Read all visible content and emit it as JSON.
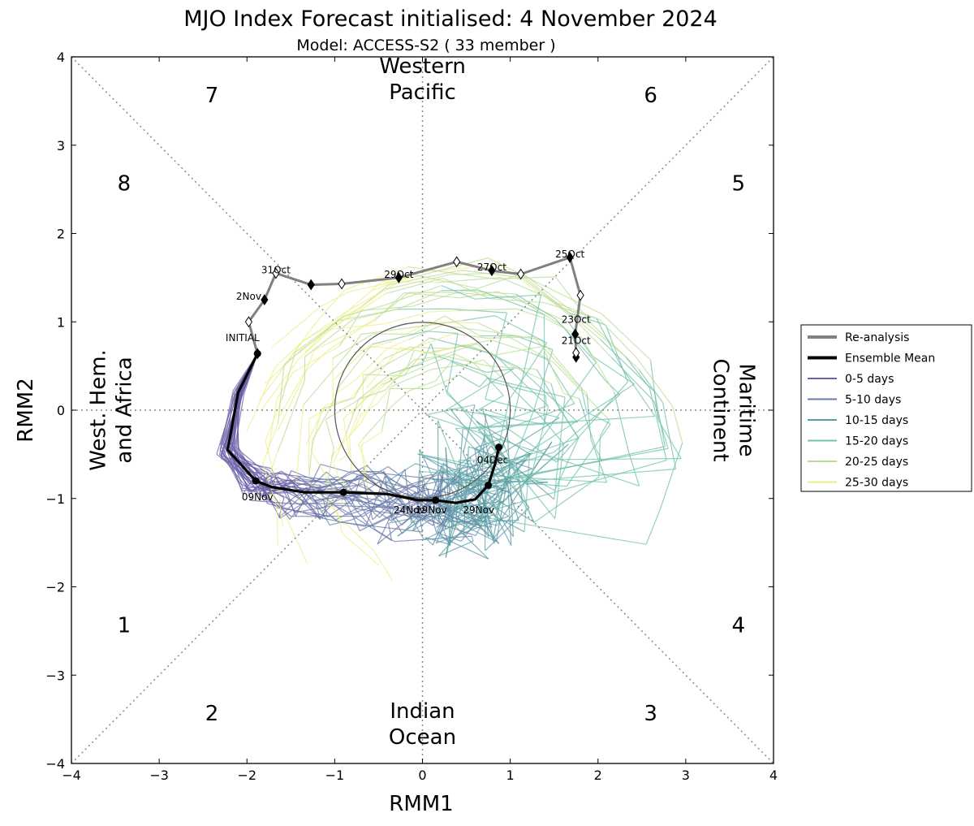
{
  "chart_data": {
    "type": "line",
    "title": "MJO Index Forecast initialised:  4  November 2024",
    "subtitle": "Model: ACCESS-S2 ( 33 member )",
    "xlabel": "RMM1",
    "ylabel": "RMM2",
    "xlim": [
      -4,
      4
    ],
    "ylim": [
      -4,
      4
    ],
    "x_ticks": [
      -4,
      -3,
      -2,
      -1,
      0,
      1,
      2,
      3,
      4
    ],
    "y_ticks": [
      -4,
      -3,
      -2,
      -1,
      0,
      1,
      2,
      3,
      4
    ],
    "x_tick_labels": [
      "−4",
      "−3",
      "−2",
      "−1",
      "0",
      "1",
      "2",
      "3",
      "4"
    ],
    "y_tick_labels": [
      "−4",
      "−3",
      "−2",
      "−1",
      "0",
      "1",
      "2",
      "3",
      "4"
    ],
    "unit_circle_radius": 1,
    "phases": [
      {
        "label": "1",
        "x": -3.4,
        "y": -2.43
      },
      {
        "label": "2",
        "x": -2.4,
        "y": -3.43
      },
      {
        "label": "3",
        "x": 2.6,
        "y": -3.43
      },
      {
        "label": "4",
        "x": 3.6,
        "y": -2.43
      },
      {
        "label": "5",
        "x": 3.6,
        "y": 2.57
      },
      {
        "label": "6",
        "x": 2.6,
        "y": 3.57
      },
      {
        "label": "7",
        "x": -2.4,
        "y": 3.57
      },
      {
        "label": "8",
        "x": -3.4,
        "y": 2.57
      }
    ],
    "regions": [
      {
        "lines": [
          "Western",
          "Pacific"
        ],
        "x": 0,
        "y": 3.75,
        "rotate": 0
      },
      {
        "lines": [
          "Indian",
          "Ocean"
        ],
        "x": 0,
        "y": -3.55,
        "rotate": 0
      },
      {
        "lines": [
          "West. Hem.",
          "and Africa"
        ],
        "x": -3.55,
        "y": 0,
        "rotate": -90
      },
      {
        "lines": [
          "Maritime",
          "Continent"
        ],
        "x": 3.55,
        "y": 0,
        "rotate": 90
      }
    ],
    "series": [
      {
        "name": "Re-analysis",
        "color": "#808080",
        "points": [
          [
            1.75,
            0.6
          ],
          [
            1.75,
            0.65
          ],
          [
            1.74,
            0.86
          ],
          [
            1.8,
            1.3
          ],
          [
            1.68,
            1.73
          ],
          [
            1.12,
            1.54
          ],
          [
            0.79,
            1.58
          ],
          [
            0.39,
            1.68
          ],
          [
            -0.27,
            1.5
          ],
          [
            -0.92,
            1.43
          ],
          [
            -1.27,
            1.42
          ],
          [
            -1.67,
            1.55
          ],
          [
            -1.8,
            1.25
          ],
          [
            -1.98,
            1.0
          ],
          [
            -1.88,
            0.64
          ]
        ]
      },
      {
        "name": "Ensemble Mean",
        "color": "#000000",
        "points": [
          [
            -1.88,
            0.64
          ],
          [
            -2.1,
            0.2
          ],
          [
            -2.22,
            -0.45
          ],
          [
            -1.9,
            -0.8
          ],
          [
            -1.72,
            -0.87
          ],
          [
            -1.35,
            -0.93
          ],
          [
            -0.9,
            -0.93
          ],
          [
            -0.4,
            -0.95
          ],
          [
            -0.05,
            -1.02
          ],
          [
            0.15,
            -1.02
          ],
          [
            0.38,
            -1.05
          ],
          [
            0.6,
            -1.01
          ],
          [
            0.75,
            -0.85
          ],
          [
            0.83,
            -0.6
          ],
          [
            0.87,
            -0.42
          ]
        ]
      }
    ],
    "date_labels": [
      {
        "text": "25Oct",
        "x": 1.68,
        "y": 1.73
      },
      {
        "text": "27Oct",
        "x": 0.79,
        "y": 1.58
      },
      {
        "text": "29Oct",
        "x": -0.27,
        "y": 1.5
      },
      {
        "text": "31Oct",
        "x": -1.67,
        "y": 1.55
      },
      {
        "text": "2Nov",
        "x": -1.98,
        "y": 1.25
      },
      {
        "text": "23Oct",
        "x": 1.75,
        "y": 0.99
      },
      {
        "text": "21Oct",
        "x": 1.75,
        "y": 0.75
      },
      {
        "text": "INITIAL",
        "x": -2.05,
        "y": 0.78
      },
      {
        "text": "09Nov",
        "x": -1.88,
        "y": -1.02
      },
      {
        "text": "24Nov",
        "x": -0.15,
        "y": -1.17
      },
      {
        "text": "19Nov",
        "x": 0.1,
        "y": -1.17
      },
      {
        "text": "29Nov",
        "x": 0.64,
        "y": -1.17
      },
      {
        "text": "04Dec",
        "x": 0.8,
        "y": -0.6
      }
    ],
    "legend": {
      "placement": "right",
      "entries": [
        {
          "label": "Re-analysis",
          "color": "#808080",
          "width": 3
        },
        {
          "label": "Ensemble Mean",
          "color": "#000000",
          "width": 3
        },
        {
          "label": "0-5 days",
          "color": "#6a62a8",
          "width": 1
        },
        {
          "label": "5-10 days",
          "color": "#6a7aa8",
          "width": 1
        },
        {
          "label": "10-15 days",
          "color": "#5c9aa5",
          "width": 1
        },
        {
          "label": "15-20 days",
          "color": "#72c2ac",
          "width": 1
        },
        {
          "label": "20-25 days",
          "color": "#bcdc94",
          "width": 1
        },
        {
          "label": "25-30 days",
          "color": "#eded8a",
          "width": 1
        }
      ]
    }
  }
}
